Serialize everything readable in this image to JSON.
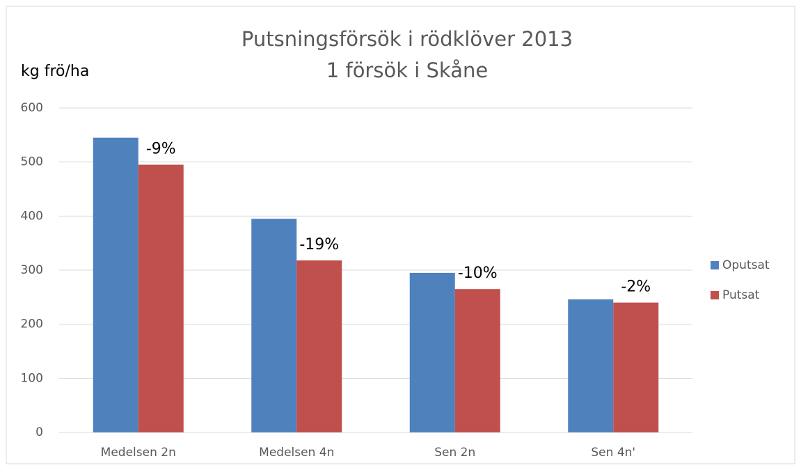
{
  "chart_data": {
    "type": "bar",
    "title": "Putsningsförsök i rödklöver 2013",
    "subtitle": "1 försök i Skåne",
    "y_label": "kg frö/ha",
    "categories": [
      "Medelsen 2n",
      "Medelsen 4n",
      "Sen 2n",
      "Sen 4n'"
    ],
    "series": [
      {
        "name": "Oputsat",
        "color": "#4f81bd",
        "values": [
          545,
          395,
          295,
          246
        ]
      },
      {
        "name": "Putsat",
        "color": "#c0504d",
        "values": [
          495,
          318,
          265,
          240
        ]
      }
    ],
    "annotations": [
      "-9%",
      "-19%",
      "-10%",
      "-2%"
    ],
    "ylim": [
      0,
      600
    ],
    "yticks": [
      0,
      100,
      200,
      300,
      400,
      500,
      600
    ],
    "grid": true,
    "legend": "right"
  }
}
